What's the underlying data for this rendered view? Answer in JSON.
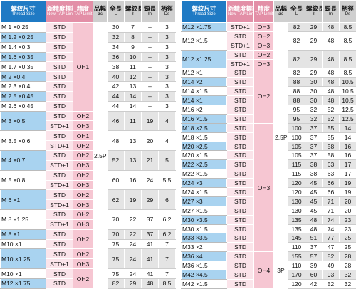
{
  "columns": [
    [
      "螺紋尺寸",
      "Thread Size"
    ],
    [
      "新精度標記",
      "New TAP Limit"
    ],
    [
      "精度",
      "TAP Limit"
    ],
    [
      "品幅",
      "øc"
    ],
    [
      "全長",
      "L"
    ],
    [
      "螺紋長",
      "ℓ"
    ],
    [
      "頸長",
      "ℓn"
    ],
    [
      "柄徑",
      "Ds"
    ]
  ],
  "tables": [
    {
      "rows": [
        [
          "M 1 ×0.25",
          "STD",
          "OH1",
          "2.5P",
          "30",
          "7",
          "–",
          "3"
        ],
        [
          "M 1.2 ×0.25",
          "STD",
          null,
          null,
          "32",
          "8",
          "–",
          "3"
        ],
        [
          "M 1.4 ×0.3",
          "STD",
          null,
          null,
          "34",
          "9",
          "–",
          "3"
        ],
        [
          "M 1.6 ×0.35",
          "STD",
          null,
          null,
          "36",
          "10",
          "–",
          "3"
        ],
        [
          "M 1.7 ×0.35",
          "STD",
          null,
          null,
          "38",
          "11",
          "–",
          "3"
        ],
        [
          "M 2 ×0.4",
          "STD",
          null,
          null,
          "40",
          "12",
          "–",
          "3"
        ],
        [
          "M 2.3 ×0.4",
          "STD",
          null,
          null,
          "42",
          "13",
          "–",
          "3"
        ],
        [
          "M 2.5 ×0.45",
          "STD",
          null,
          null,
          "44",
          "14",
          "–",
          "3"
        ],
        [
          "M 2.6 ×0.45",
          "STD",
          null,
          null,
          "44",
          "14",
          "–",
          "3"
        ],
        [
          "M 3 ×0.5",
          "STD",
          "OH2",
          null,
          "46",
          "11",
          "19",
          "4"
        ],
        [
          null,
          "STD+1",
          "OH3",
          null,
          null,
          null,
          null,
          null
        ],
        [
          "M 3.5 ×0.6",
          "STD",
          "OH1",
          null,
          "48",
          "13",
          "20",
          "4"
        ],
        [
          null,
          "STD+1",
          "OH2",
          null,
          null,
          null,
          null,
          null
        ],
        [
          "M 4 ×0.7",
          "STD",
          "OH2",
          null,
          "52",
          "13",
          "21",
          "5"
        ],
        [
          null,
          "STD+1",
          "OH3",
          null,
          null,
          null,
          null,
          null
        ],
        [
          "M 5 ×0.8",
          "STD",
          "OH2",
          null,
          "60",
          "16",
          "24",
          "5.5"
        ],
        [
          null,
          "STD+1",
          "OH3",
          null,
          null,
          null,
          null,
          null
        ],
        [
          "M 6 ×1",
          "STD",
          "OH2",
          null,
          "62",
          "19",
          "29",
          "6"
        ],
        [
          null,
          "STD+1",
          "OH3",
          null,
          null,
          null,
          null,
          null
        ],
        [
          "M 8 ×1.25",
          "STD",
          "OH2",
          null,
          "70",
          "22",
          "37",
          "6.2"
        ],
        [
          null,
          "STD+1",
          "OH3",
          null,
          null,
          null,
          null,
          null
        ],
        [
          "M 8 ×1",
          "STD",
          "OH2",
          null,
          "70",
          "22",
          "37",
          "6.2"
        ],
        [
          "M10 ×1",
          "STD",
          null,
          null,
          "75",
          "24",
          "41",
          "7"
        ],
        [
          "M10 ×1.25",
          "STD",
          "OH2",
          null,
          "75",
          "24",
          "41",
          "7"
        ],
        [
          null,
          "STD+1",
          "OH3",
          null,
          null,
          null,
          null,
          null
        ],
        [
          "M10 ×1",
          "STD",
          "OH2",
          null,
          "75",
          "24",
          "41",
          "7"
        ],
        [
          "M12 ×1.75",
          "STD",
          null,
          null,
          "82",
          "29",
          "48",
          "8.5"
        ]
      ]
    },
    {
      "rows": [
        [
          "M12 ×1.75",
          "STD+1",
          "OH3",
          "2.5P",
          "82",
          "29",
          "48",
          "8.5"
        ],
        [
          "M12 ×1.5",
          "STD",
          "OH2",
          null,
          "82",
          "29",
          "48",
          "8.5"
        ],
        [
          null,
          "STD+1",
          "OH3",
          null,
          null,
          null,
          null,
          null
        ],
        [
          "M12 ×1.25",
          "STD",
          "OH2",
          null,
          "82",
          "29",
          "48",
          "8.5"
        ],
        [
          null,
          "STD+1",
          "OH3",
          null,
          null,
          null,
          null,
          null
        ],
        [
          "M12 ×1",
          "STD",
          "OH2",
          null,
          "82",
          "29",
          "48",
          "8.5"
        ],
        [
          "M14 ×2",
          "STD",
          null,
          null,
          "88",
          "30",
          "48",
          "10.5"
        ],
        [
          "M14 ×1.5",
          "STD",
          null,
          null,
          "88",
          "30",
          "48",
          "10.5"
        ],
        [
          "M14 ×1",
          "STD",
          null,
          null,
          "88",
          "30",
          "48",
          "10.5"
        ],
        [
          "M16 ×2",
          "STD",
          null,
          null,
          "95",
          "32",
          "52",
          "12.5"
        ],
        [
          "M16 ×1.5",
          "STD",
          null,
          null,
          "95",
          "32",
          "52",
          "12.5"
        ],
        [
          "M18 ×2.5",
          "STD",
          "OH3",
          null,
          "100",
          "37",
          "55",
          "14"
        ],
        [
          "M18 ×1.5",
          "STD",
          null,
          null,
          "100",
          "37",
          "55",
          "14"
        ],
        [
          "M20 ×2.5",
          "STD",
          null,
          null,
          "105",
          "37",
          "58",
          "16"
        ],
        [
          "M20 ×1.5",
          "STD",
          null,
          null,
          "105",
          "37",
          "58",
          "16"
        ],
        [
          "M22 ×2.5",
          "STD",
          null,
          null,
          "115",
          "38",
          "63",
          "17"
        ],
        [
          "M22 ×1.5",
          "STD",
          null,
          null,
          "115",
          "38",
          "63",
          "17"
        ],
        [
          "M24 ×3",
          "STD",
          null,
          null,
          "120",
          "45",
          "66",
          "19"
        ],
        [
          "M24 ×1.5",
          "STD",
          null,
          null,
          "120",
          "45",
          "66",
          "19"
        ],
        [
          "M27 ×3",
          "STD",
          null,
          null,
          "130",
          "45",
          "71",
          "20"
        ],
        [
          "M27 ×1.5",
          "STD",
          null,
          null,
          "130",
          "45",
          "71",
          "20"
        ],
        [
          "M30 ×3.5",
          "STD",
          null,
          null,
          "135",
          "48",
          "74",
          "23"
        ],
        [
          "M30 ×1.5",
          "STD",
          null,
          null,
          "135",
          "48",
          "74",
          "23"
        ],
        [
          "M33 ×3.5",
          "STD",
          null,
          null,
          "145",
          "51",
          "77",
          "25"
        ],
        [
          "M33 ×2",
          "STD",
          null,
          null,
          "110",
          "37",
          "47",
          "25"
        ],
        [
          "M36 ×4",
          "STD",
          "OH4",
          "3P",
          "155",
          "57",
          "82",
          "28"
        ],
        [
          "M36 ×1.5",
          "STD",
          null,
          null,
          "110",
          "39",
          "49",
          "28"
        ],
        [
          "M42 ×4.5",
          "STD",
          null,
          null,
          "170",
          "60",
          "93",
          "32"
        ],
        [
          "M42 ×1.5",
          "STD",
          null,
          null,
          "120",
          "42",
          "52",
          "32"
        ]
      ]
    }
  ]
}
